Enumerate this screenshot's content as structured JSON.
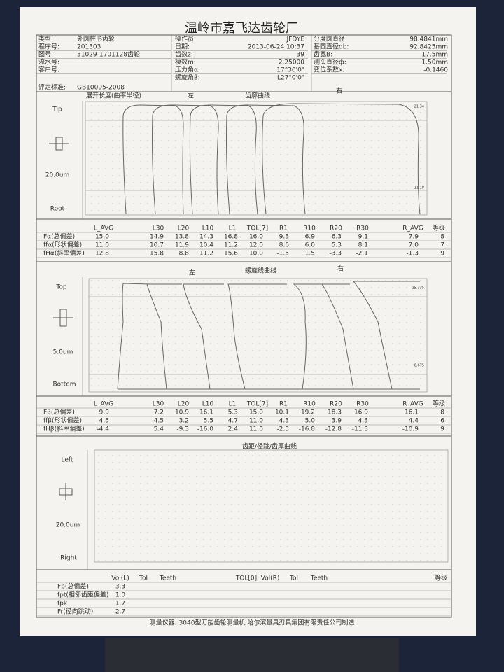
{
  "header": {
    "title": "温岭市嘉飞达齿轮厂",
    "left": [
      {
        "label": "类型:",
        "value": "外圆柱形齿轮"
      },
      {
        "label": "程序号:",
        "value": "201303"
      },
      {
        "label": "图号:",
        "value": "31029-1701128齿轮"
      },
      {
        "label": "流水号:"
      },
      {
        "label": "客户号:"
      },
      {
        "label": "评定标准:",
        "value": "GB10095-2008"
      }
    ],
    "middle": [
      {
        "label": "操作员:",
        "value": "JFDYE"
      },
      {
        "label": "日期:",
        "value": "2013-06-24 10:37"
      },
      {
        "label": "齿数z:",
        "value": "39"
      },
      {
        "label": "模数m:",
        "value": "2.25000"
      },
      {
        "label": "压力角α:",
        "value": "17°30'0\""
      },
      {
        "label": "螺旋角β:",
        "value": "L27°0'0\""
      }
    ],
    "right": [
      {
        "label": "分度圆直径:",
        "value": "98.4841mm"
      },
      {
        "label": "基圆直径db:",
        "value": "92.8425mm"
      },
      {
        "label": "齿宽B:",
        "value": "17.5mm"
      },
      {
        "label": "测头直径ф:",
        "value": "1.50mm"
      },
      {
        "label": "变位系数x:",
        "value": "-0.1460"
      }
    ]
  },
  "profile": {
    "axis_label": "展开长度(曲率半径)",
    "left": "左",
    "title": "齿廓曲线",
    "right": "右",
    "top": "Tip",
    "scale": "20.0um",
    "bottom": "Root",
    "upper_mark": "21.34",
    "lower_mark": "11.18",
    "table": {
      "columns": [
        "L_AVG",
        "L30",
        "L20",
        "L10",
        "L1",
        "TOL[7]",
        "R1",
        "R10",
        "R20",
        "R30",
        "R_AVG",
        "等级"
      ],
      "rows": [
        {
          "label": "Fα(总偏差)",
          "values": [
            "15.0",
            "14.9",
            "13.8",
            "14.3",
            "16.8",
            "16.0",
            "9.3",
            "6.9",
            "6.3",
            "9.1",
            "7.9",
            "8"
          ]
        },
        {
          "label": "ffα(形状偏差)",
          "values": [
            "11.0",
            "10.7",
            "11.9",
            "10.4",
            "11.2",
            "12.0",
            "8.6",
            "6.0",
            "5.3",
            "8.1",
            "7.0",
            "7"
          ]
        },
        {
          "label": "fHα(斜率偏差)",
          "values": [
            "12.8",
            "15.8",
            "8.8",
            "11.2",
            "15.6",
            "10.0",
            "-1.5",
            "1.5",
            "-3.3",
            "-2.1",
            "-1.3",
            "9"
          ]
        }
      ]
    }
  },
  "lead": {
    "left": "左",
    "title": "螺旋线曲线",
    "right": "右",
    "top": "Top",
    "scale": "5.0um",
    "bottom": "Bottom",
    "upper_mark": "15.335",
    "lower_mark": "0.675",
    "table": {
      "columns": [
        "L_AVG",
        "L30",
        "L20",
        "L10",
        "L1",
        "TOL[7]",
        "R1",
        "R10",
        "R20",
        "R30",
        "R_AVG",
        "等级"
      ],
      "rows": [
        {
          "label": "Fβ(总偏差)",
          "values": [
            "9.9",
            "7.2",
            "10.9",
            "16.1",
            "5.3",
            "15.0",
            "10.1",
            "19.2",
            "18.3",
            "16.9",
            "16.1",
            "8"
          ]
        },
        {
          "label": "ffβ(形状偏差)",
          "values": [
            "4.5",
            "4.5",
            "3.2",
            "5.5",
            "4.7",
            "11.0",
            "4.3",
            "5.0",
            "3.9",
            "4.3",
            "4.4",
            "6"
          ]
        },
        {
          "label": "fHβ(斜率偏差)",
          "values": [
            "-4.4",
            "5.4",
            "-9.3",
            "-16.0",
            "2.4",
            "11.0",
            "-2.5",
            "-16.8",
            "-12.8",
            "-11.3",
            "-10.9",
            "9"
          ]
        }
      ]
    }
  },
  "pitch": {
    "title": "齿距/径跳/齿厚曲线",
    "top": "Left",
    "scale": "20.0um",
    "bottom": "Right",
    "table": {
      "columns": [
        "Vol(L)",
        "Tol",
        "Teeth",
        "TOL[0]",
        "Vol(R)",
        "Tol",
        "Teeth",
        "等级"
      ],
      "rows": [
        {
          "label": "Fp(总偏差)",
          "values": [
            "3.3"
          ]
        },
        {
          "label": "fpt(相邻齿距偏差)",
          "values": [
            "1.0"
          ]
        },
        {
          "label": "fpk",
          "values": [
            "1.7"
          ]
        },
        {
          "label": "Fr(径向跳动)",
          "values": [
            "2.7"
          ]
        }
      ]
    }
  },
  "footer": "测量仪器: 3040型万能齿轮测量机 哈尔滨量具刃具集团有限责任公司制造"
}
